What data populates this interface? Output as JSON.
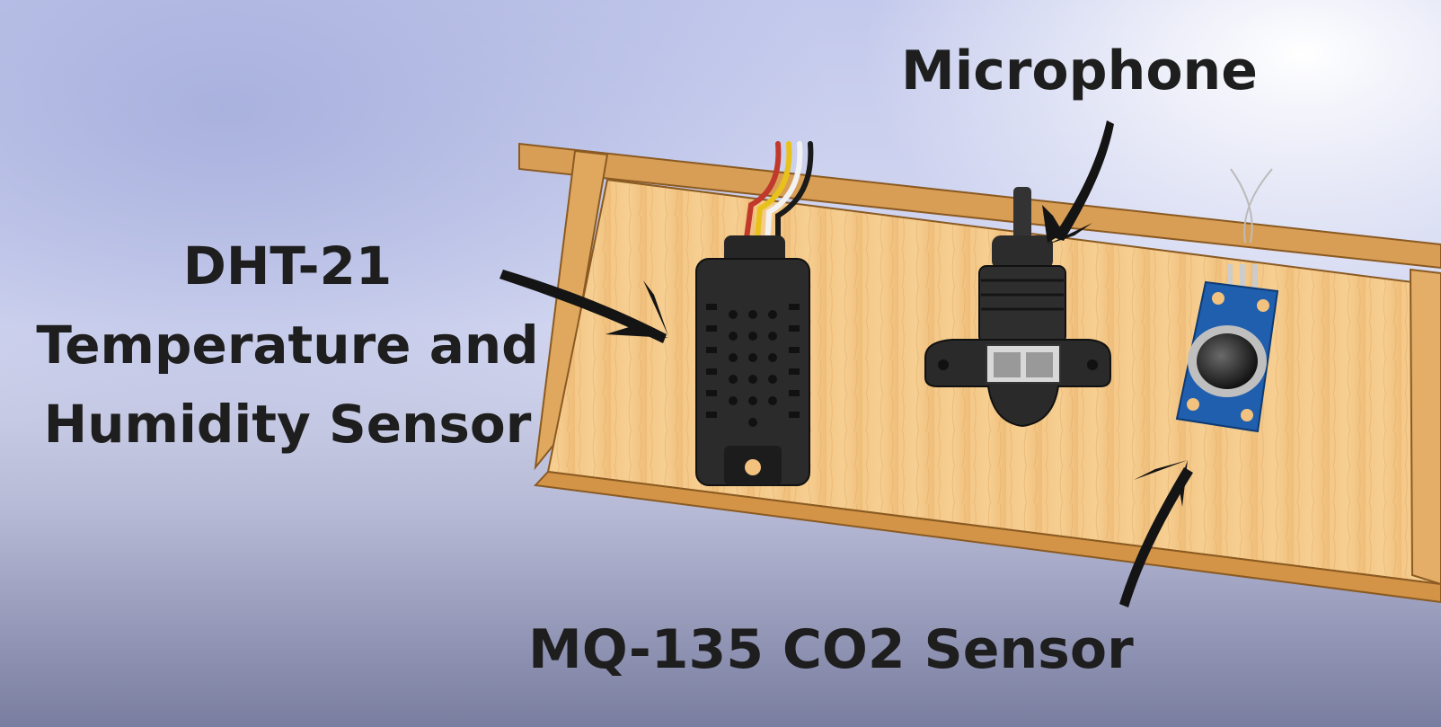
{
  "labels": {
    "microphone": "Microphone",
    "dht_line1": "DHT-21",
    "dht_line2": "Temperature and",
    "dht_line3": "Humidity Sensor",
    "mq": "MQ-135 CO2 Sensor"
  },
  "colors": {
    "wood": "#f2c27e",
    "wood_edge": "#c98a3a",
    "sensor_black": "#2a2a2a",
    "board_blue": "#1f5fae",
    "text": "#1e1e1e"
  },
  "wires": [
    "#c0392b",
    "#e8c21a",
    "#f2f2f2",
    "#1a1a1a"
  ]
}
